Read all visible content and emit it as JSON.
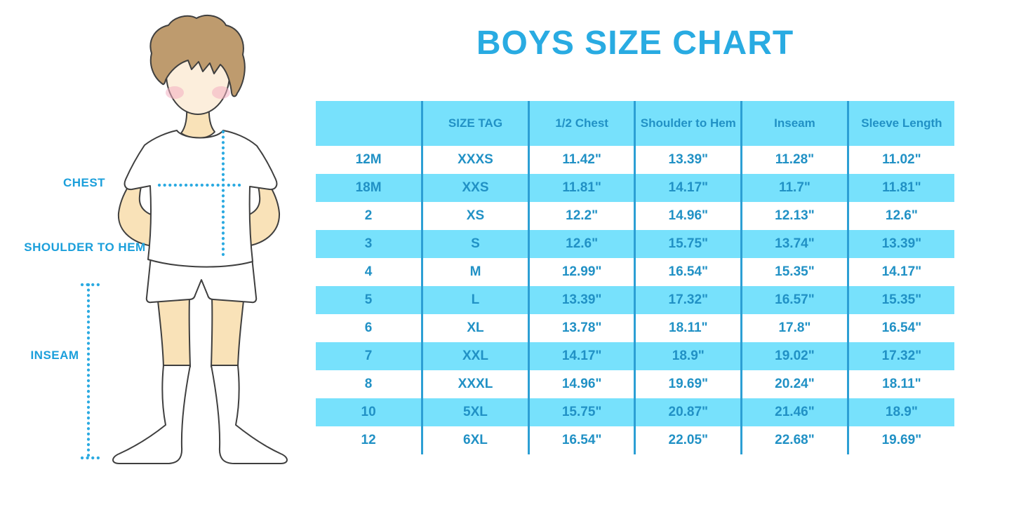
{
  "title": "BOYS SIZE CHART",
  "figure": {
    "labels": {
      "chest": "CHEST",
      "shoulder_to_hem": "SHOULDER TO HEM",
      "inseam": "INSEAM"
    }
  },
  "chart_data": {
    "type": "table",
    "title": "BOYS SIZE CHART",
    "columns": [
      "",
      "SIZE TAG",
      "1/2 Chest",
      "Shoulder to Hem",
      "Inseam",
      "Sleeve Length"
    ],
    "rows": [
      [
        "12M",
        "XXXS",
        "11.42\"",
        "13.39\"",
        "11.28\"",
        "11.02\""
      ],
      [
        "18M",
        "XXS",
        "11.81\"",
        "14.17\"",
        "11.7\"",
        "11.81\""
      ],
      [
        "2",
        "XS",
        "12.2\"",
        "14.96\"",
        "12.13\"",
        "12.6\""
      ],
      [
        "3",
        "S",
        "12.6\"",
        "15.75\"",
        "13.74\"",
        "13.39\""
      ],
      [
        "4",
        "M",
        "12.99\"",
        "16.54\"",
        "15.35\"",
        "14.17\""
      ],
      [
        "5",
        "L",
        "13.39\"",
        "17.32\"",
        "16.57\"",
        "15.35\""
      ],
      [
        "6",
        "XL",
        "13.78\"",
        "18.11\"",
        "17.8\"",
        "16.54\""
      ],
      [
        "7",
        "XXL",
        "14.17\"",
        "18.9\"",
        "19.02\"",
        "17.32\""
      ],
      [
        "8",
        "XXXL",
        "14.96\"",
        "19.69\"",
        "20.24\"",
        "18.11\""
      ],
      [
        "10",
        "5XL",
        "15.75\"",
        "20.87\"",
        "21.46\"",
        "18.9\""
      ],
      [
        "12",
        "6XL",
        "16.54\"",
        "22.05\"",
        "22.68\"",
        "19.69\""
      ]
    ],
    "grid": "vertical-lines-only",
    "legend_position": "none",
    "row_striping": "alternating white / light blue, header light blue"
  },
  "colors": {
    "title_blue": "#29ABE2",
    "table_fill_blue": "#77E1FC",
    "table_border_blue": "#2C9FD4",
    "table_text_blue": "#2191C5",
    "figure_label_blue": "#1B9FDB",
    "dotted_line_blue": "#2BAAE1",
    "hair_brown": "#BE9B6E",
    "skin": "#F9E2B8",
    "face_skin": "#FCEEDC",
    "blush_pink": "#F2AFC1",
    "outline_gray": "#3F3F3F"
  }
}
